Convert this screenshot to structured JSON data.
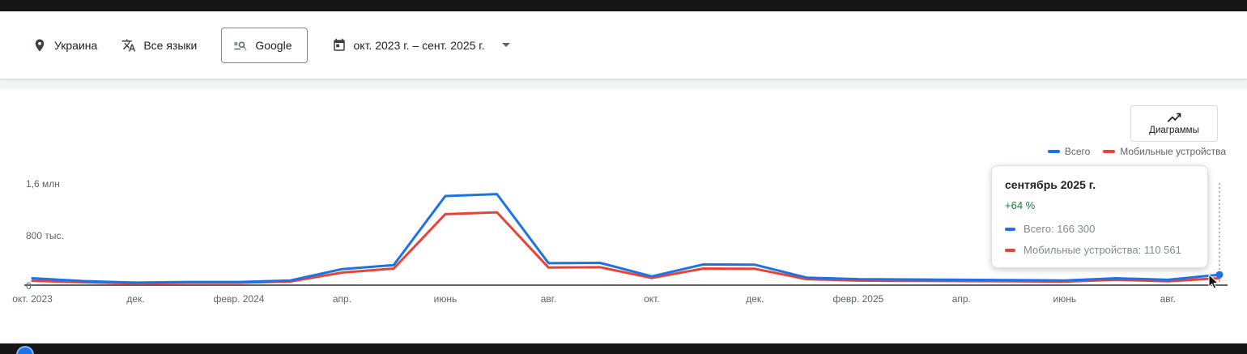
{
  "filters": {
    "location": "Украина",
    "language": "Все языки",
    "network": "Google",
    "date_range": "окт. 2023 г. – сент. 2025 г."
  },
  "toolbar": {
    "charts_button": "Диаграммы"
  },
  "legend": [
    {
      "label": "Всего",
      "color": "#1a73e8"
    },
    {
      "label": "Мобильные устройства",
      "color": "#ea4335"
    }
  ],
  "tooltip": {
    "title": "сентябрь 2025 г.",
    "change": "+64 %",
    "rows": [
      {
        "label": "Всего: 166 300",
        "color": "#1a73e8"
      },
      {
        "label": "Мобильные устройства: 110 561",
        "color": "#ea4335"
      }
    ]
  },
  "chart_data": {
    "type": "line",
    "title": "",
    "x": [
      "окт. 2023",
      "нояб. 2023",
      "дек. 2023",
      "янв. 2024",
      "февр. 2024",
      "март 2024",
      "апр. 2024",
      "май 2024",
      "июнь 2024",
      "июль 2024",
      "авг. 2024",
      "сент. 2024",
      "окт. 2024",
      "нояб. 2024",
      "дек. 2024",
      "янв. 2025",
      "февр. 2025",
      "март 2025",
      "апр. 2025",
      "май 2025",
      "июнь 2025",
      "июль 2025",
      "авг. 2025",
      "сент. 2025"
    ],
    "series": [
      {
        "name": "Всего",
        "color": "#1a73e8",
        "values": [
          110000,
          65000,
          40000,
          50000,
          50000,
          75000,
          255000,
          320000,
          1420000,
          1450000,
          350000,
          355000,
          140000,
          330000,
          325000,
          120000,
          95000,
          90000,
          85000,
          80000,
          75000,
          110000,
          85000,
          166300
        ]
      },
      {
        "name": "Мобильные устройства",
        "color": "#ea4335",
        "values": [
          70000,
          45000,
          28000,
          38000,
          38000,
          58000,
          200000,
          265000,
          1130000,
          1160000,
          280000,
          285000,
          115000,
          265000,
          260000,
          95000,
          72000,
          68000,
          64000,
          60000,
          57000,
          85000,
          62000,
          110561
        ]
      }
    ],
    "ylim": [
      0,
      1600000
    ],
    "ylabels": [
      "1,6 млн",
      "800 тыс.",
      "0"
    ],
    "xticks": [
      "окт. 2023",
      "дек.",
      "февр. 2024",
      "апр.",
      "июнь",
      "авг.",
      "окт.",
      "дек.",
      "февр. 2025",
      "апр.",
      "июнь",
      "авг."
    ],
    "xtick_every": 2,
    "grid": false,
    "legend_position": "top-right",
    "hover_index": 23
  }
}
